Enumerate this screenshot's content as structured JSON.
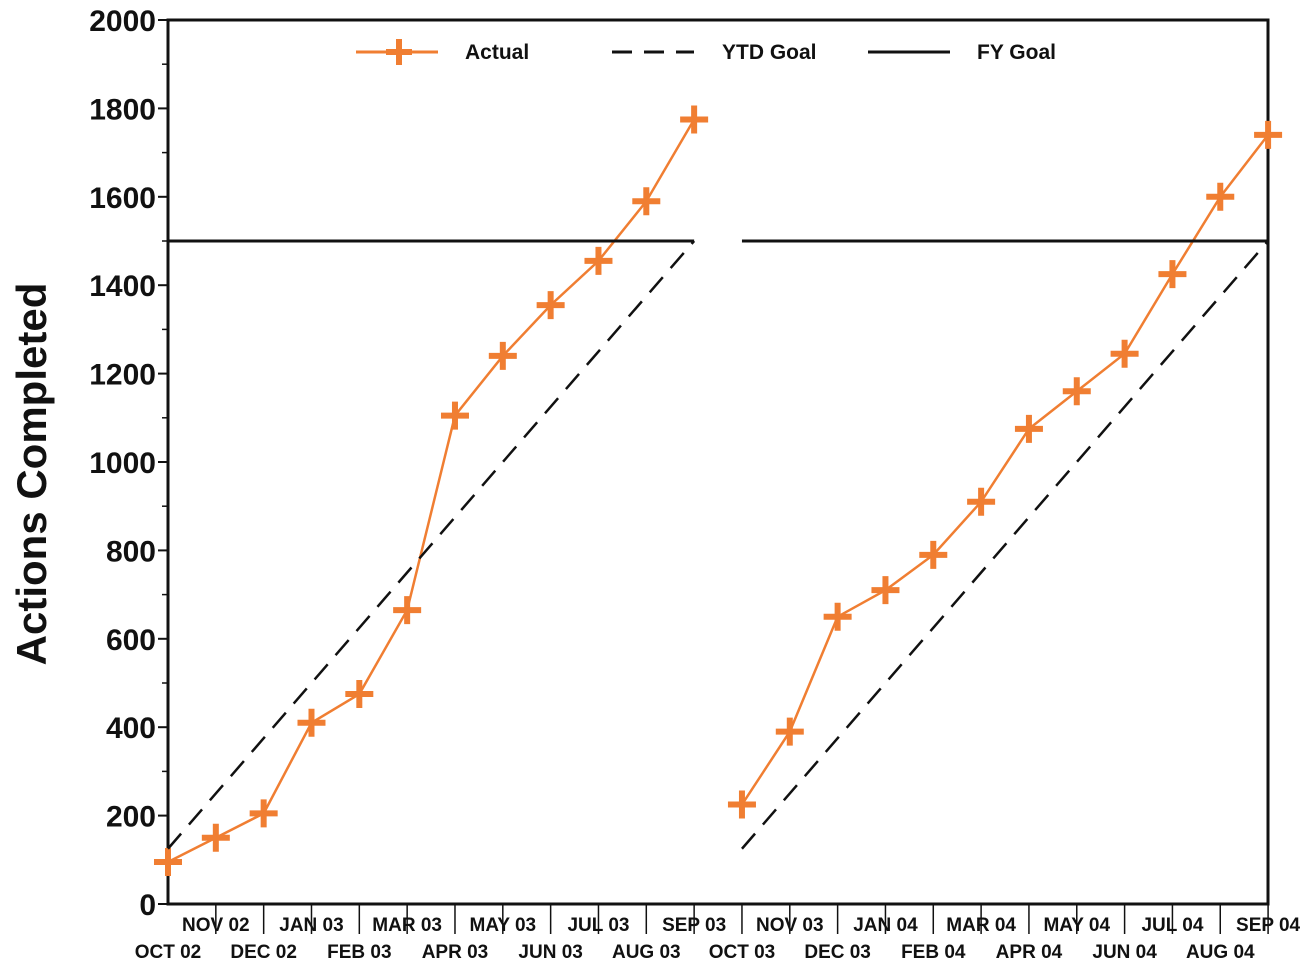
{
  "chart_data": {
    "type": "line",
    "ylabel": "Actions Completed",
    "ylim": [
      0,
      2000
    ],
    "yticks": [
      0,
      200,
      400,
      600,
      800,
      1000,
      1200,
      1400,
      1600,
      1800,
      2000
    ],
    "ytick_labels": [
      "0",
      "200",
      "400",
      "600",
      "800",
      "1000",
      "1200",
      "1400",
      "1600",
      "1800",
      "2000"
    ],
    "categories": [
      "OCT 02",
      "NOV 02",
      "DEC 02",
      "JAN 03",
      "FEB 03",
      "MAR 03",
      "APR 03",
      "MAY 03",
      "JUN 03",
      "JUL 03",
      "AUG 03",
      "SEP 03",
      "OCT 03",
      "NOV 03",
      "DEC 03",
      "JAN 04",
      "FEB 04",
      "MAR 04",
      "APR 04",
      "MAY 04",
      "JUN 04",
      "JUL 04",
      "AUG 04",
      "SEP 04"
    ],
    "legend": {
      "placement": "top",
      "entries": [
        {
          "label": "Actual",
          "style": "line-plus-marker"
        },
        {
          "label": "YTD Goal",
          "style": "dashed"
        },
        {
          "label": "FY Goal",
          "style": "solid"
        }
      ]
    },
    "grid": false,
    "series": [
      {
        "name": "Actual",
        "color": "#f07e32",
        "segments": [
          {
            "categories": [
              "OCT 02",
              "NOV 02",
              "DEC 02",
              "JAN 03",
              "FEB 03",
              "MAR 03",
              "APR 03",
              "MAY 03",
              "JUN 03",
              "JUL 03",
              "AUG 03",
              "SEP 03"
            ],
            "values": [
              95,
              150,
              205,
              410,
              475,
              665,
              1105,
              1240,
              1355,
              1455,
              1590,
              1775
            ]
          },
          {
            "categories": [
              "OCT 03",
              "NOV 03",
              "DEC 03",
              "JAN 04",
              "FEB 04",
              "MAR 04",
              "APR 04",
              "MAY 04",
              "JUN 04",
              "JUL 04",
              "AUG 04",
              "SEP 04"
            ],
            "values": [
              225,
              390,
              650,
              710,
              790,
              910,
              1075,
              1160,
              1245,
              1425,
              1600,
              1740
            ]
          }
        ]
      },
      {
        "name": "YTD Goal",
        "color": "#111111",
        "segments": [
          {
            "categories": [
              "OCT 02",
              "SEP 03"
            ],
            "values": [
              125,
              1500
            ]
          },
          {
            "categories": [
              "OCT 03",
              "SEP 04"
            ],
            "values": [
              125,
              1500
            ]
          }
        ]
      },
      {
        "name": "FY Goal",
        "color": "#111111",
        "segments": [
          {
            "categories": [
              "OCT 02",
              "SEP 03"
            ],
            "values": [
              1500,
              1500
            ]
          },
          {
            "categories": [
              "OCT 03",
              "SEP 04"
            ],
            "values": [
              1500,
              1500
            ]
          }
        ]
      }
    ]
  }
}
